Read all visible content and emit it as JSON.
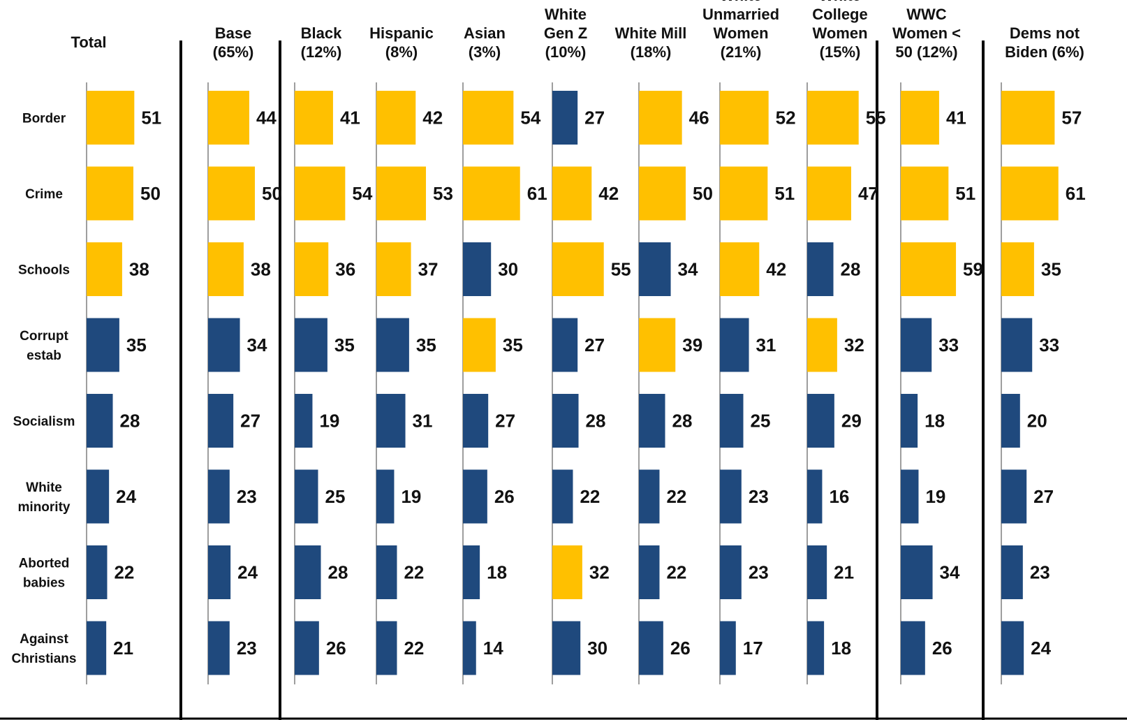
{
  "chart_data": {
    "type": "bar",
    "orientation": "horizontal",
    "categories": [
      [
        "Border"
      ],
      [
        "Crime"
      ],
      [
        "Schools"
      ],
      [
        "Corrupt",
        "estab"
      ],
      [
        "Socialism"
      ],
      [
        "White",
        "minority"
      ],
      [
        "Aborted",
        "babies"
      ],
      [
        "Against",
        "Christians"
      ]
    ],
    "series": [
      {
        "name": "Total",
        "header": [
          "Total"
        ],
        "values": [
          51,
          50,
          38,
          35,
          28,
          24,
          22,
          21
        ],
        "highlight": [
          1,
          1,
          1,
          0,
          0,
          0,
          0,
          0
        ]
      },
      {
        "name": "Base (65%)",
        "header": [
          "Base",
          "(65%)"
        ],
        "values": [
          44,
          50,
          38,
          34,
          27,
          23,
          24,
          23
        ],
        "highlight": [
          1,
          1,
          1,
          0,
          0,
          0,
          0,
          0
        ]
      },
      {
        "name": "Black (12%)",
        "header": [
          "Black",
          "(12%)"
        ],
        "values": [
          41,
          54,
          36,
          35,
          19,
          25,
          28,
          26
        ],
        "highlight": [
          1,
          1,
          1,
          0,
          0,
          0,
          0,
          0
        ]
      },
      {
        "name": "Hispanic (8%)",
        "header": [
          "Hispanic",
          "(8%)"
        ],
        "values": [
          42,
          53,
          37,
          35,
          31,
          19,
          22,
          22
        ],
        "highlight": [
          1,
          1,
          1,
          0,
          0,
          0,
          0,
          0
        ]
      },
      {
        "name": "Asian (3%)",
        "header": [
          "Asian",
          "(3%)"
        ],
        "values": [
          54,
          61,
          30,
          35,
          27,
          26,
          18,
          14
        ],
        "highlight": [
          1,
          1,
          0,
          1,
          0,
          0,
          0,
          0
        ]
      },
      {
        "name": "White Gen Z (10%)",
        "header": [
          "White",
          "Gen Z",
          "(10%)"
        ],
        "values": [
          27,
          42,
          55,
          27,
          28,
          22,
          32,
          30
        ],
        "highlight": [
          0,
          1,
          1,
          0,
          0,
          0,
          1,
          0
        ]
      },
      {
        "name": "White Mill (18%)",
        "header": [
          "White Mill",
          "(18%)"
        ],
        "values": [
          46,
          50,
          34,
          39,
          28,
          22,
          22,
          26
        ],
        "highlight": [
          1,
          1,
          0,
          1,
          0,
          0,
          0,
          0
        ]
      },
      {
        "name": "White Unmarried Women (21%)",
        "header": [
          "White",
          "Unmarried",
          "Women",
          "(21%)"
        ],
        "values": [
          52,
          51,
          42,
          31,
          25,
          23,
          23,
          17
        ],
        "highlight": [
          1,
          1,
          1,
          0,
          0,
          0,
          0,
          0
        ]
      },
      {
        "name": "White College Women (15%)",
        "header": [
          "White",
          "College",
          "Women",
          "(15%)"
        ],
        "values": [
          55,
          47,
          28,
          32,
          29,
          16,
          21,
          18
        ],
        "highlight": [
          1,
          1,
          0,
          1,
          0,
          0,
          0,
          0
        ]
      },
      {
        "name": "WWC Women < 50 (12%)",
        "header": [
          "WWC",
          "Women <",
          "50 (12%)"
        ],
        "values": [
          41,
          51,
          59,
          33,
          18,
          19,
          34,
          26
        ],
        "highlight": [
          1,
          1,
          1,
          0,
          0,
          0,
          0,
          0
        ]
      },
      {
        "name": "Dems not Biden (6%)",
        "header": [
          "Dems not",
          "Biden (6%)"
        ],
        "values": [
          57,
          61,
          35,
          33,
          20,
          27,
          23,
          24
        ],
        "highlight": [
          1,
          1,
          1,
          0,
          0,
          0,
          0,
          0
        ]
      }
    ],
    "colors": {
      "highlight": "#FFC000",
      "normal": "#1F497D",
      "text": "#111111",
      "axis": "#7F7F7F",
      "divider": "#000000"
    },
    "xlim": [
      0,
      100
    ],
    "grid": false,
    "legend": "none"
  }
}
